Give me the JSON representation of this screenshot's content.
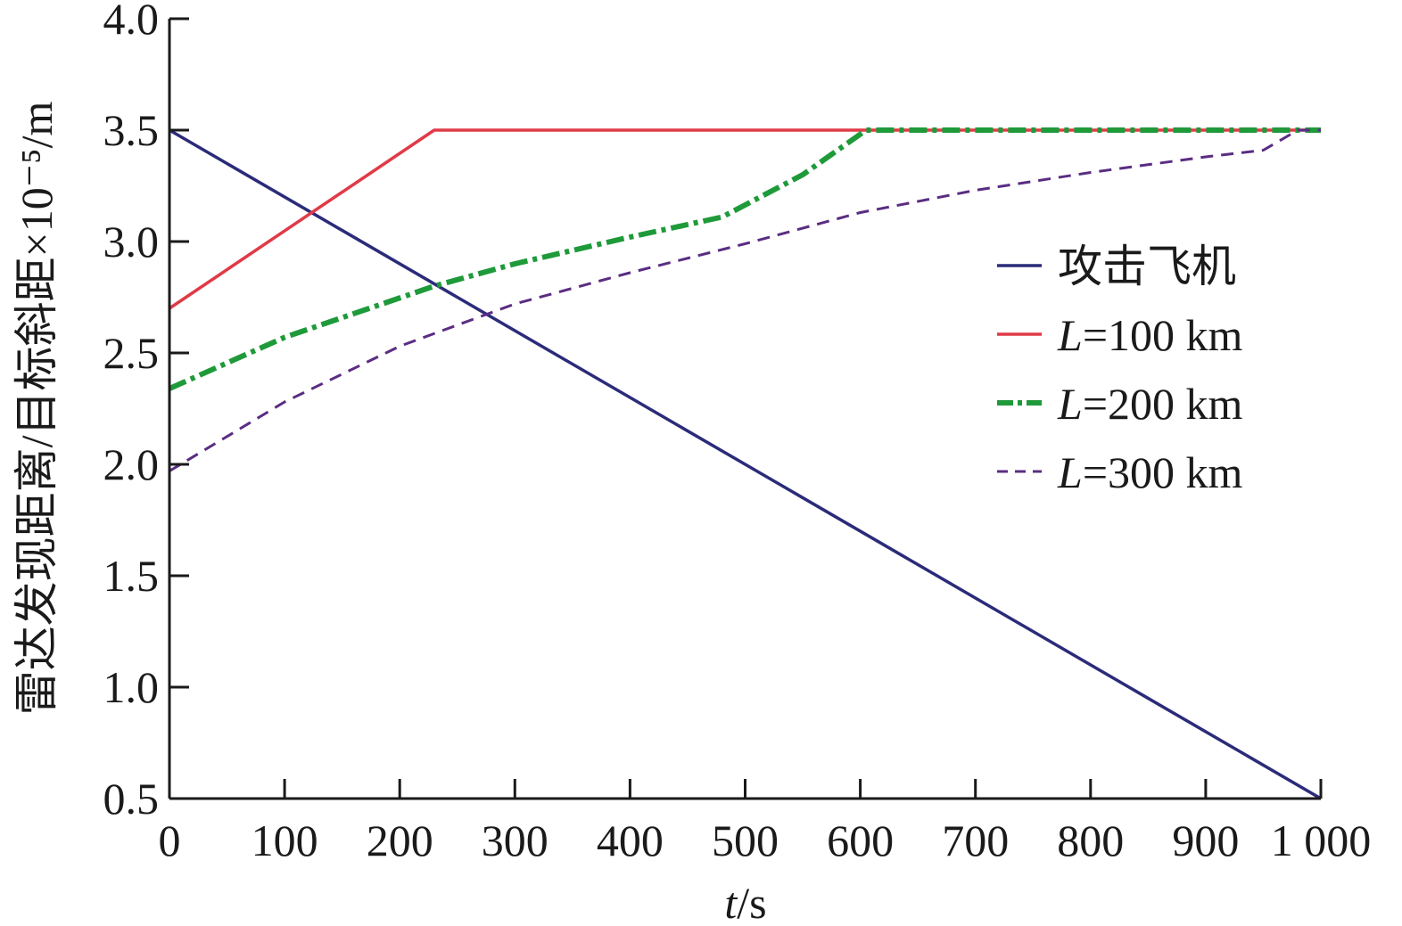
{
  "chart_data": {
    "type": "line",
    "xlabel": "t/s",
    "ylabel": "雷达发现距离/目标斜距×10⁻⁵/m",
    "xlim": [
      0,
      1000
    ],
    "ylim": [
      0.5,
      4.0
    ],
    "xticks": [
      0,
      100,
      200,
      300,
      400,
      500,
      600,
      700,
      800,
      900,
      1000
    ],
    "xtick_labels": [
      "0",
      "100",
      "200",
      "300",
      "400",
      "500",
      "600",
      "700",
      "800",
      "900",
      "1 000"
    ],
    "yticks": [
      0.5,
      1.0,
      1.5,
      2.0,
      2.5,
      3.0,
      3.5,
      4.0
    ],
    "ytick_labels": [
      "0.5",
      "1.0",
      "1.5",
      "2.0",
      "2.5",
      "3.0",
      "3.5",
      "4.0"
    ],
    "grid": false,
    "legend_position": "right",
    "series": [
      {
        "name": "攻击飞机",
        "color": "#2b2b7a",
        "style": "solid",
        "x": [
          0,
          1000
        ],
        "y": [
          3.5,
          0.5
        ]
      },
      {
        "name": "L=100 km",
        "legend_italic": "L",
        "legend_rest": "=100 km",
        "color": "#e03a47",
        "style": "solid",
        "x": [
          0,
          230,
          1000
        ],
        "y": [
          2.7,
          3.5,
          3.5
        ]
      },
      {
        "name": "L=200 km",
        "legend_italic": "L",
        "legend_rest": "=200 km",
        "color": "#1f9a3a",
        "style": "dashdot",
        "x": [
          0,
          100,
          230,
          300,
          400,
          480,
          550,
          605,
          1000
        ],
        "y": [
          2.34,
          2.57,
          2.8,
          2.9,
          3.02,
          3.11,
          3.3,
          3.5,
          3.5
        ]
      },
      {
        "name": "L=300 km",
        "legend_italic": "L",
        "legend_rest": "=300 km",
        "color": "#5a2d82",
        "style": "dashed",
        "x": [
          0,
          100,
          200,
          300,
          400,
          500,
          600,
          700,
          800,
          900,
          950,
          980,
          1000
        ],
        "y": [
          1.97,
          2.28,
          2.53,
          2.72,
          2.86,
          2.99,
          3.13,
          3.23,
          3.31,
          3.38,
          3.41,
          3.5,
          3.5
        ]
      }
    ]
  }
}
